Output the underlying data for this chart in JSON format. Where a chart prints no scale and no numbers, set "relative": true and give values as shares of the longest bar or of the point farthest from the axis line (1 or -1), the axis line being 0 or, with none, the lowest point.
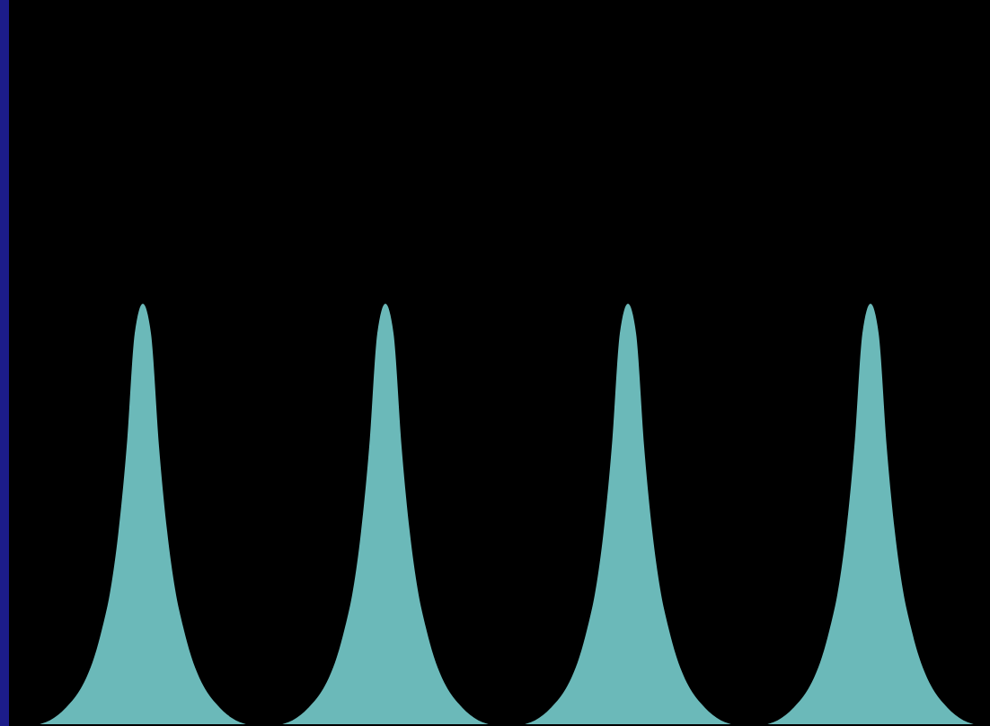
{
  "chart_data": {
    "type": "area",
    "relative": true,
    "color": "#6bb9b9",
    "categories": [
      null,
      null,
      null,
      null,
      null,
      null,
      null,
      null,
      null,
      null,
      null,
      null,
      null,
      null,
      null,
      null,
      null,
      null,
      null,
      null,
      null,
      null,
      null,
      null,
      null,
      null,
      null,
      null,
      null,
      null,
      null,
      null,
      null,
      null,
      null,
      null,
      null,
      null,
      null,
      null,
      null,
      null,
      null,
      null,
      null,
      null,
      null,
      null,
      null,
      null,
      null,
      null,
      null,
      null,
      null,
      null,
      null,
      null,
      null,
      null,
      null,
      null,
      null,
      null,
      null,
      null,
      null,
      null,
      null,
      null,
      null,
      null,
      null,
      null,
      null,
      null,
      null,
      null,
      null,
      null,
      null,
      null,
      null,
      null,
      null,
      null,
      null,
      null,
      null,
      null,
      null,
      null,
      null,
      null,
      null,
      null,
      null,
      null,
      null,
      null,
      null,
      null,
      null,
      null,
      null,
      null,
      null,
      null,
      null,
      null,
      null,
      null,
      null,
      null,
      null,
      null,
      null,
      null,
      null,
      null,
      null
    ],
    "values": [
      0,
      0,
      0,
      0.005,
      0.015,
      0.03,
      0.05,
      0.075,
      0.11,
      0.16,
      0.23,
      0.32,
      0.46,
      0.66,
      0.93,
      1,
      0.93,
      0.66,
      0.46,
      0.32,
      0.23,
      0.16,
      0.11,
      0.075,
      0.05,
      0.03,
      0.015,
      0.005,
      0,
      0,
      0,
      0,
      0,
      0.005,
      0.015,
      0.03,
      0.05,
      0.075,
      0.11,
      0.16,
      0.23,
      0.32,
      0.46,
      0.66,
      0.93,
      1,
      0.93,
      0.66,
      0.46,
      0.32,
      0.23,
      0.16,
      0.11,
      0.075,
      0.05,
      0.03,
      0.015,
      0.005,
      0,
      0,
      0,
      0,
      0,
      0.005,
      0.015,
      0.03,
      0.05,
      0.075,
      0.11,
      0.16,
      0.23,
      0.32,
      0.46,
      0.66,
      0.93,
      1,
      0.93,
      0.66,
      0.46,
      0.32,
      0.23,
      0.16,
      0.11,
      0.075,
      0.05,
      0.03,
      0.015,
      0.005,
      0,
      0,
      0,
      0,
      0,
      0.005,
      0.015,
      0.03,
      0.05,
      0.075,
      0.11,
      0.16,
      0.23,
      0.32,
      0.46,
      0.66,
      0.93,
      1,
      0.93,
      0.66,
      0.46,
      0.32,
      0.23,
      0.16,
      0.11,
      0.075,
      0.05,
      0.03,
      0.015,
      0.005,
      0,
      0,
      0
    ]
  }
}
